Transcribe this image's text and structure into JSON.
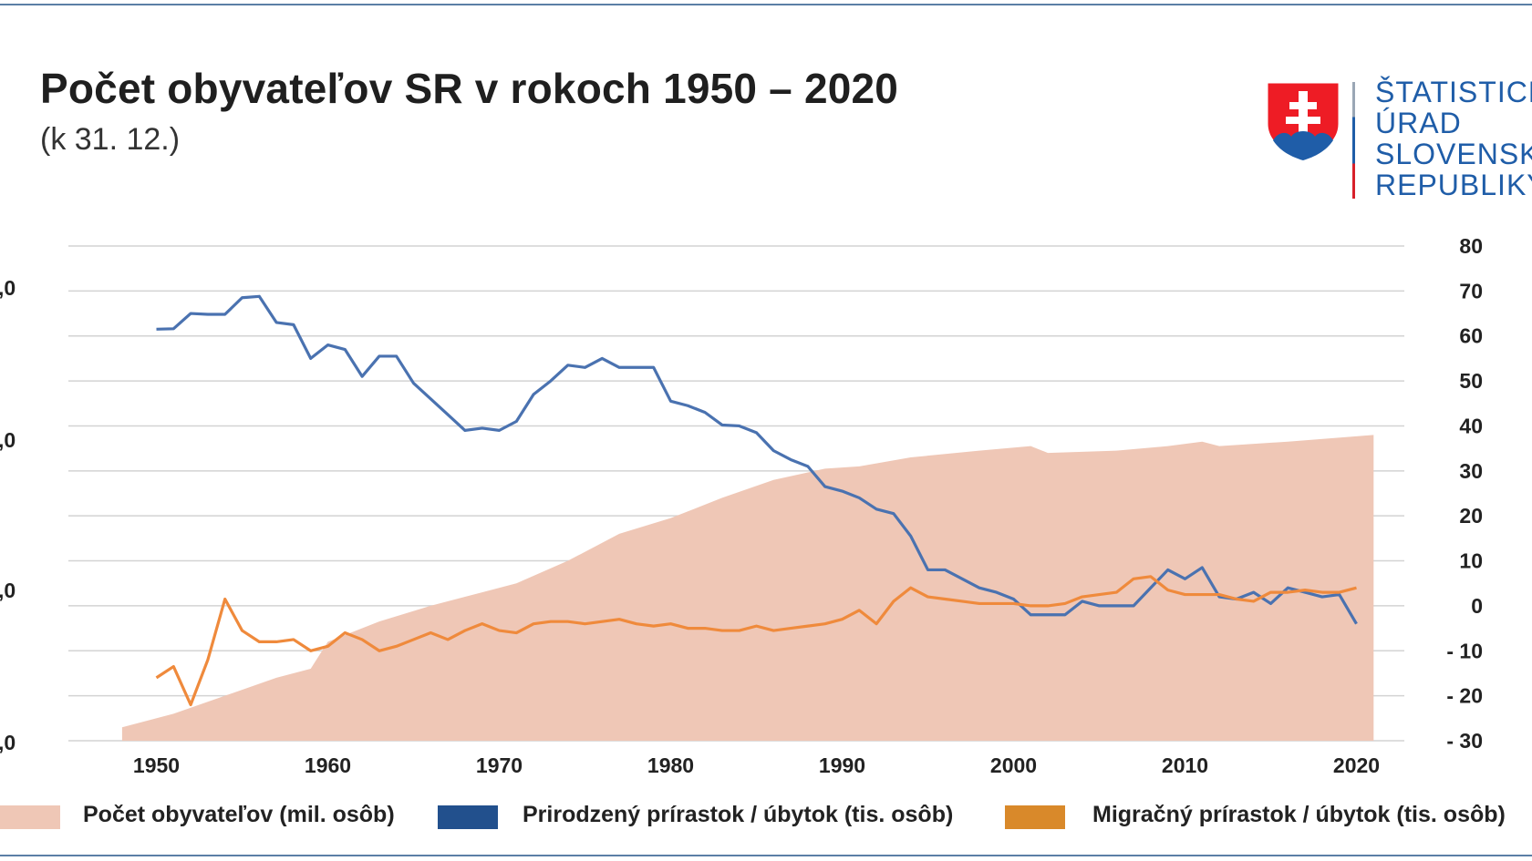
{
  "title": "Počet obyvateľov SR v rokoch 1950 – 2020",
  "subtitle": "(k 31. 12.)",
  "logo": {
    "lines": [
      "ŠTATISTICKÝ",
      "ÚRAD",
      "SLOVENSKEJ",
      "REPUBLIKY"
    ],
    "icon": "slovak-coat-of-arms-icon"
  },
  "colors": {
    "population_area": "#efc7b6",
    "natural_line": "#4a72b0",
    "migration_line": "#ef8a3c",
    "legend_natural": "#22508d",
    "legend_migration": "#d9892a",
    "grid": "#d3d3d3"
  },
  "legend": {
    "population": "Počet obyvateľov (mil. osôb)",
    "natural": "Prirodzený prírastok / úbytok (tis. osôb)",
    "migration": "Migračný prírastok / úbytok (tis. osôb)"
  },
  "chart_data": {
    "type": "area",
    "title": "Počet obyvateľov SR v rokoch 1950 – 2020",
    "x_ticks": [
      "1950",
      "1960",
      "1970",
      "1980",
      "1990",
      "2000",
      "2010",
      "2020"
    ],
    "left_axis": {
      "visible_ticks": [
        ",0",
        ",0",
        ",0",
        ",0"
      ]
    },
    "right_axis": {
      "ylim": [
        -30,
        80
      ],
      "ticks": [
        "80",
        "70",
        "60",
        "50",
        "40",
        "30",
        "20",
        "10",
        "0",
        "- 10",
        "- 20",
        "- 30"
      ]
    },
    "grid": true,
    "legend_position": "bottom",
    "population_area": {
      "name": "Počet obyvateľov (mil. osôb)",
      "axis": "right",
      "points": [
        [
          1948,
          -27
        ],
        [
          1951,
          -24
        ],
        [
          1954,
          -20
        ],
        [
          1957,
          -16
        ],
        [
          1959,
          -14
        ],
        [
          1960,
          -8
        ],
        [
          1963,
          -3.5
        ],
        [
          1966,
          0
        ],
        [
          1969,
          3
        ],
        [
          1971,
          5
        ],
        [
          1974,
          10
        ],
        [
          1977,
          16
        ],
        [
          1980,
          19.5
        ],
        [
          1983,
          24
        ],
        [
          1986,
          28
        ],
        [
          1989,
          30.5
        ],
        [
          1991,
          31
        ],
        [
          1994,
          33
        ],
        [
          1998,
          34.5
        ],
        [
          2001,
          35.5
        ],
        [
          2002,
          34
        ],
        [
          2006,
          34.5
        ],
        [
          2009,
          35.5
        ],
        [
          2011,
          36.5
        ],
        [
          2012,
          35.5
        ],
        [
          2016,
          36.5
        ],
        [
          2021,
          38
        ]
      ]
    },
    "series": [
      {
        "name": "Prirodzený prírastok / úbytok (tis. osôb)",
        "axis": "right",
        "x": [
          1950,
          1951,
          1952,
          1953,
          1954,
          1955,
          1956,
          1957,
          1958,
          1959,
          1960,
          1961,
          1962,
          1963,
          1964,
          1965,
          1966,
          1967,
          1968,
          1969,
          1970,
          1971,
          1972,
          1973,
          1974,
          1975,
          1976,
          1977,
          1978,
          1979,
          1980,
          1981,
          1982,
          1983,
          1984,
          1985,
          1986,
          1987,
          1988,
          1989,
          1990,
          1991,
          1992,
          1993,
          1994,
          1995,
          1996,
          1997,
          1998,
          1999,
          2000,
          2001,
          2002,
          2003,
          2004,
          2005,
          2006,
          2007,
          2008,
          2009,
          2010,
          2011,
          2012,
          2013,
          2014,
          2015,
          2016,
          2017,
          2018,
          2019,
          2020
        ],
        "values": [
          61.5,
          61.6,
          65,
          64.8,
          64.8,
          68.5,
          68.8,
          63,
          62.5,
          55,
          58,
          57,
          51,
          55.5,
          55.5,
          49.5,
          46,
          42.5,
          39,
          39.5,
          39,
          41,
          47,
          50,
          53.5,
          53,
          55,
          53,
          53,
          53,
          45.5,
          44.5,
          43,
          40.2,
          40,
          38.5,
          34.5,
          32.5,
          31,
          26.5,
          25.5,
          24,
          21.5,
          20.5,
          15.5,
          8,
          8,
          6,
          4,
          3,
          1.5,
          -2,
          -2,
          -2,
          1,
          0,
          0,
          0,
          4,
          8,
          6,
          8.5,
          2,
          1.5,
          3,
          0.5,
          4,
          3,
          2,
          2.5,
          -4
        ]
      },
      {
        "name": "Migračný prírastok / úbytok (tis. osôb)",
        "axis": "right",
        "x": [
          1950,
          1951,
          1952,
          1953,
          1954,
          1955,
          1956,
          1957,
          1958,
          1959,
          1960,
          1961,
          1962,
          1963,
          1964,
          1965,
          1966,
          1967,
          1968,
          1969,
          1970,
          1971,
          1972,
          1973,
          1974,
          1975,
          1976,
          1977,
          1978,
          1979,
          1980,
          1981,
          1982,
          1983,
          1984,
          1985,
          1986,
          1987,
          1988,
          1989,
          1990,
          1991,
          1992,
          1993,
          1994,
          1995,
          1996,
          1997,
          1998,
          1999,
          2000,
          2001,
          2002,
          2003,
          2004,
          2005,
          2006,
          2007,
          2008,
          2009,
          2010,
          2011,
          2012,
          2013,
          2014,
          2015,
          2016,
          2017,
          2018,
          2019,
          2020
        ],
        "values": [
          -16,
          -13.5,
          -22,
          -12,
          1.5,
          -5.5,
          -8,
          -8,
          -7.5,
          -10,
          -9,
          -6,
          -7.5,
          -10,
          -9,
          -7.5,
          -6,
          -7.5,
          -5.5,
          -4,
          -5.5,
          -6,
          -4,
          -3.5,
          -3.5,
          -4,
          -3.5,
          -3,
          -4,
          -4.5,
          -4,
          -5,
          -5,
          -5.5,
          -5.5,
          -4.5,
          -5.5,
          -5,
          -4.5,
          -4,
          -3,
          -1,
          -4,
          1,
          4,
          2,
          1.5,
          1,
          0.5,
          0.5,
          0.5,
          0,
          0,
          0.5,
          2,
          2.5,
          3,
          6,
          6.5,
          3.5,
          2.5,
          2.5,
          2.5,
          1.5,
          1,
          3,
          3,
          3.5,
          3,
          3,
          4
        ]
      }
    ]
  }
}
